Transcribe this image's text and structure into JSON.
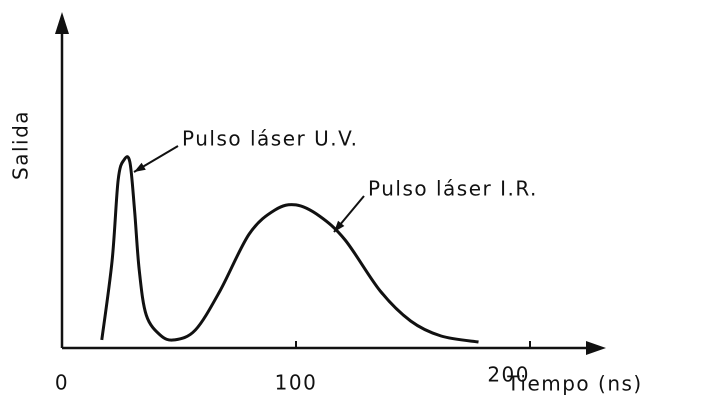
{
  "chart_data": {
    "type": "line",
    "x_label": "Tiempo (ns)",
    "y_label": "Salida",
    "xlim": [
      0,
      200
    ],
    "xticks": [
      0,
      100,
      200
    ],
    "ylim": [
      0,
      100
    ],
    "series": [
      {
        "color": "#111111",
        "x": [
          17,
          21.4,
          24,
          26.5,
          29,
          31,
          33,
          36,
          42,
          48,
          57,
          67.5,
          80,
          91,
          100,
          110,
          121,
          136,
          149,
          162,
          178
        ],
        "values": [
          2.7,
          29,
          56,
          62.7,
          62,
          46,
          26,
          11,
          4.3,
          2.7,
          6,
          19,
          38,
          46,
          47.7,
          44,
          36,
          19,
          9,
          4,
          2
        ]
      }
    ],
    "annotations": [
      {
        "text": "Pulso láser U.V."
      },
      {
        "text": "Pulso láser I.R."
      }
    ]
  }
}
